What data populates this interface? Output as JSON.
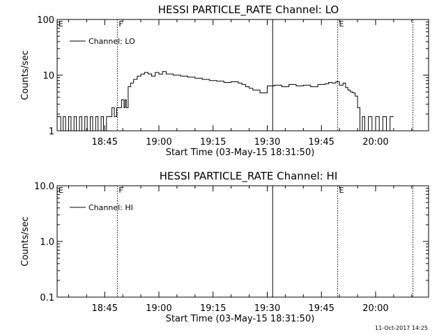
{
  "footer_timestamp": "11-Oct-2017 14:25",
  "chart_data": [
    {
      "type": "line",
      "title": "HESSI PARTICLE_RATE Channel: LO",
      "xlabel": "Start Time (03-May-15 18:31:50)",
      "ylabel": "Counts/sec",
      "y_scale": "log",
      "ylim": [
        1,
        100
      ],
      "y_ticks": [
        "1",
        "10",
        "100"
      ],
      "x_ticks": [
        "18:45",
        "19:00",
        "19:15",
        "19:30",
        "19:45",
        "20:00"
      ],
      "xlim": [
        "18:31:50",
        "20:14:40"
      ],
      "grid": false,
      "legend": "top-left",
      "series": [
        {
          "name": "Channel: LO",
          "x": [
            "18:31:50",
            "18:32:50",
            "18:33:30",
            "18:34:10",
            "18:35:00",
            "18:35:40",
            "18:36:30",
            "18:37:10",
            "18:38:00",
            "18:38:40",
            "18:39:30",
            "18:40:10",
            "18:41:00",
            "18:41:40",
            "18:42:30",
            "18:43:10",
            "18:44:00",
            "18:44:40",
            "18:45:30",
            "18:46:10",
            "18:47:00",
            "18:47:40",
            "18:48:20",
            "18:49:00",
            "18:49:40",
            "18:50:20",
            "18:50:40",
            "18:51:00",
            "18:51:30",
            "18:52:10",
            "18:53:00",
            "18:54:00",
            "18:55:00",
            "18:56:00",
            "18:57:00",
            "18:58:00",
            "18:59:00",
            "19:00:00",
            "19:01:00",
            "19:02:00",
            "19:04:00",
            "19:06:00",
            "19:08:00",
            "19:10:00",
            "19:12:00",
            "19:14:00",
            "19:16:00",
            "19:18:00",
            "19:20:00",
            "19:22:00",
            "19:23:00",
            "19:24:00",
            "19:25:00",
            "19:26:00",
            "19:28:00",
            "19:30:00",
            "19:32:00",
            "19:34:00",
            "19:36:00",
            "19:38:00",
            "19:40:00",
            "19:42:00",
            "19:44:00",
            "19:46:00",
            "19:47:00",
            "19:48:00",
            "19:49:00",
            "19:50:00",
            "19:51:00",
            "19:51:40",
            "19:52:20",
            "19:53:00",
            "19:53:40",
            "19:54:20",
            "19:55:00",
            "19:55:40",
            "19:56:20",
            "19:57:00",
            "19:58:00",
            "19:59:00",
            "20:00:00",
            "20:01:00",
            "20:02:00",
            "20:03:00",
            "20:04:00",
            "20:05:00"
          ],
          "y": [
            1.8,
            1,
            1.8,
            1,
            1.8,
            1,
            1.8,
            1,
            1.8,
            1,
            1.8,
            1,
            1.8,
            1,
            1.8,
            1,
            1.8,
            1,
            1.8,
            1.8,
            2.6,
            1.8,
            2.6,
            2.6,
            3.6,
            2.6,
            3.6,
            2.6,
            6.2,
            7.2,
            8.4,
            9.6,
            10.4,
            11.2,
            10.5,
            9.6,
            11.2,
            10.4,
            11.6,
            10.5,
            10,
            9.6,
            9.2,
            8.8,
            8.4,
            8,
            7.8,
            7.4,
            7.6,
            7.2,
            6.8,
            6.2,
            5.8,
            5.4,
            4.8,
            6.4,
            6.6,
            6.2,
            6.8,
            6.4,
            6.6,
            6.2,
            6.8,
            7,
            7.4,
            7.2,
            7.6,
            6.6,
            7.2,
            6,
            5.4,
            5,
            4.8,
            4.2,
            2.6,
            1,
            1.8,
            1,
            1.8,
            1,
            1.8,
            1,
            1.8,
            1,
            1.8,
            1.8
          ]
        }
      ],
      "annotations": [
        {
          "time": "18:31:50",
          "label": "E",
          "style": "dotted"
        },
        {
          "time": "18:48:30",
          "label": "F",
          "style": "dotted"
        },
        {
          "time": "19:31:30",
          "label": "",
          "style": "solid"
        },
        {
          "time": "19:49:30",
          "label": "E",
          "style": "dotted"
        },
        {
          "time": "20:10:20",
          "label": "",
          "style": "dotted"
        }
      ]
    },
    {
      "type": "line",
      "title": "HESSI PARTICLE_RATE Channel: HI",
      "xlabel": "Start Time (03-May-15 18:31:50)",
      "ylabel": "Counts/sec",
      "y_scale": "log",
      "ylim": [
        0.1,
        10
      ],
      "y_ticks": [
        "0.1",
        "1.0",
        "10.0"
      ],
      "x_ticks": [
        "18:45",
        "19:00",
        "19:15",
        "19:30",
        "19:45",
        "20:00"
      ],
      "xlim": [
        "18:31:50",
        "20:14:40"
      ],
      "grid": false,
      "legend": "top-left",
      "series": [
        {
          "name": "Channel: HI",
          "x": [],
          "y": []
        }
      ],
      "annotations": [
        {
          "time": "18:31:50",
          "label": "E",
          "style": "dotted"
        },
        {
          "time": "18:48:30",
          "label": "F",
          "style": "dotted"
        },
        {
          "time": "19:31:30",
          "label": "",
          "style": "solid"
        },
        {
          "time": "19:49:30",
          "label": "E",
          "style": "dotted"
        },
        {
          "time": "20:10:20",
          "label": "",
          "style": "dotted"
        }
      ]
    }
  ]
}
